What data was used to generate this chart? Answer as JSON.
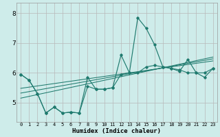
{
  "xlabel": "Humidex (Indice chaleur)",
  "background_color": "#ceecea",
  "grid_color": "#b8b8b8",
  "line_color": "#1f7a6e",
  "xlim": [
    -0.5,
    23.5
  ],
  "ylim": [
    4.35,
    8.35
  ],
  "yticks": [
    5,
    6,
    7,
    8
  ],
  "xticks": [
    0,
    1,
    2,
    3,
    4,
    5,
    6,
    7,
    8,
    9,
    10,
    11,
    12,
    13,
    14,
    15,
    16,
    17,
    18,
    19,
    20,
    21,
    22,
    23
  ],
  "y_main": [
    5.95,
    5.75,
    5.3,
    4.65,
    4.85,
    4.65,
    4.68,
    4.65,
    5.85,
    5.45,
    5.45,
    5.5,
    6.6,
    6.0,
    7.85,
    7.5,
    6.95,
    6.2,
    6.15,
    6.05,
    6.45,
    6.0,
    5.85,
    6.15
  ],
  "y_line2": [
    5.95,
    5.75,
    5.3,
    4.65,
    4.85,
    4.65,
    4.68,
    4.65,
    5.55,
    5.45,
    5.45,
    5.5,
    5.95,
    6.0,
    6.0,
    6.2,
    6.25,
    6.2,
    6.15,
    6.1,
    6.0,
    6.0,
    6.0,
    6.15
  ],
  "straight_lines": [
    [
      5.48,
      5.52,
      5.56,
      5.6,
      5.64,
      5.68,
      5.72,
      5.76,
      5.8,
      5.84,
      5.88,
      5.92,
      5.96,
      6.0,
      6.04,
      6.08,
      6.12,
      6.16,
      6.2,
      6.24,
      6.28,
      6.32,
      6.36,
      6.4
    ],
    [
      5.32,
      5.37,
      5.42,
      5.47,
      5.52,
      5.57,
      5.62,
      5.67,
      5.72,
      5.77,
      5.82,
      5.87,
      5.92,
      5.97,
      6.02,
      6.07,
      6.12,
      6.17,
      6.22,
      6.27,
      6.32,
      6.37,
      6.42,
      6.47
    ],
    [
      5.15,
      5.21,
      5.27,
      5.33,
      5.39,
      5.45,
      5.51,
      5.57,
      5.63,
      5.69,
      5.75,
      5.81,
      5.87,
      5.93,
      5.99,
      6.05,
      6.11,
      6.17,
      6.23,
      6.29,
      6.35,
      6.41,
      6.47,
      6.53
    ]
  ]
}
